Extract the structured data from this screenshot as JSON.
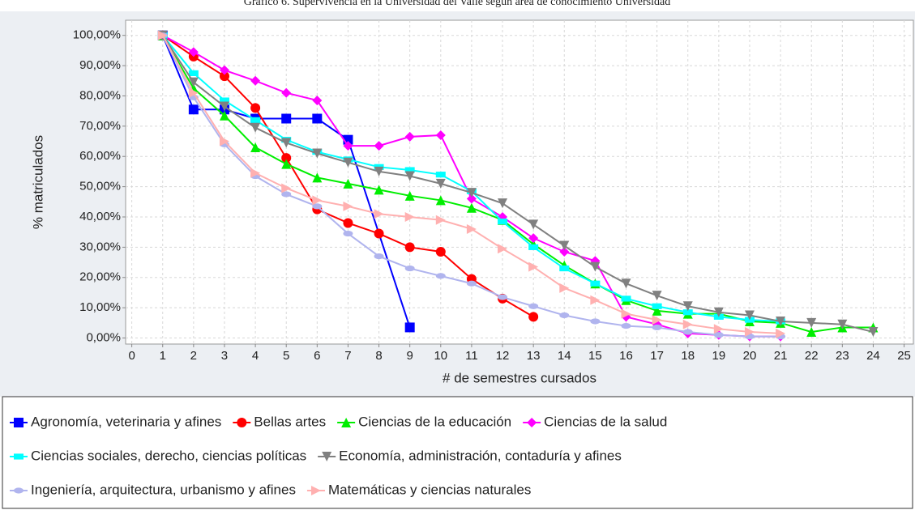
{
  "chart_data": {
    "type": "line",
    "title": "Gráfico 6. Supervivencia en la Universidad del Valle según área de conocimiento Universidad",
    "x_label": "# de semestres cursados",
    "y_label": "% matriculados",
    "xlim": [
      -0.2,
      25.3
    ],
    "xticks": [
      0,
      1,
      2,
      3,
      4,
      5,
      6,
      7,
      8,
      9,
      10,
      11,
      12,
      13,
      14,
      15,
      16,
      17,
      18,
      19,
      20,
      21,
      22,
      23,
      24,
      25
    ],
    "ylim": [
      -2,
      105
    ],
    "yticks": [
      {
        "value": 0,
        "label": "0,00%"
      },
      {
        "value": 10,
        "label": "10,00%"
      },
      {
        "value": 20,
        "label": "20,00%"
      },
      {
        "value": 30,
        "label": "30,00%"
      },
      {
        "value": 40,
        "label": "40,00%"
      },
      {
        "value": 50,
        "label": "50,00%"
      },
      {
        "value": 60,
        "label": "60,00%"
      },
      {
        "value": 70,
        "label": "70,00%"
      },
      {
        "value": 80,
        "label": "80,00%"
      },
      {
        "value": 90,
        "label": "90,00%"
      },
      {
        "value": 100,
        "label": "100,00%"
      }
    ],
    "grid": true,
    "series": [
      {
        "name": "Agronomía, veterinaria y afines",
        "color": "#0000ff",
        "marker": "square",
        "x": [
          1,
          2,
          3,
          4,
          5,
          6,
          7,
          9
        ],
        "values": [
          100,
          75.5,
          75.5,
          72.5,
          72.5,
          72.5,
          65.5,
          3.5
        ]
      },
      {
        "name": "Bellas artes",
        "color": "#ff0000",
        "marker": "circle",
        "x": [
          1,
          2,
          3,
          4,
          5,
          6,
          7,
          8,
          9,
          10,
          11,
          12,
          13
        ],
        "values": [
          100,
          93,
          86.5,
          76,
          59.5,
          42.5,
          38,
          34.5,
          30,
          28.5,
          19.5,
          13,
          7
        ]
      },
      {
        "name": "Ciencias de la educación",
        "color": "#00ee00",
        "marker": "triangle-up",
        "x": [
          1,
          2,
          3,
          4,
          5,
          6,
          7,
          8,
          9,
          10,
          11,
          12,
          13,
          14,
          15,
          16,
          17,
          18,
          19,
          20,
          21,
          22,
          23,
          24
        ],
        "values": [
          100,
          82.5,
          73.5,
          63,
          57.5,
          53,
          51,
          49,
          47,
          45.5,
          43,
          39,
          31,
          24,
          18,
          12.5,
          9,
          8,
          8,
          5.5,
          5,
          2,
          3.5,
          3.5
        ]
      },
      {
        "name": "Ciencias de la salud",
        "color": "#ff00ff",
        "marker": "diamond",
        "x": [
          1,
          2,
          3,
          4,
          5,
          6,
          7,
          8,
          9,
          10,
          11,
          12,
          13,
          14,
          15,
          16,
          17,
          18,
          19,
          20,
          21
        ],
        "values": [
          100,
          94.5,
          88.5,
          85,
          81,
          78.5,
          63.5,
          63.5,
          66.5,
          67,
          46,
          40,
          33,
          28.5,
          25.5,
          7,
          4.5,
          1.5,
          1,
          0.5,
          0.5
        ]
      },
      {
        "name": "Ciencias sociales, derecho, ciencias políticas",
        "color": "#00ffff",
        "marker": "flat",
        "x": [
          1,
          2,
          3,
          4,
          5,
          6,
          7,
          8,
          9,
          10,
          11,
          12,
          13,
          14,
          15,
          16,
          17,
          18,
          19,
          20,
          21
        ],
        "values": [
          100,
          87.5,
          78.5,
          72,
          65.5,
          61.5,
          59,
          56.5,
          55.5,
          54,
          48.5,
          38.5,
          30,
          23,
          18,
          13,
          10.5,
          8.5,
          7,
          6,
          5.5
        ]
      },
      {
        "name": "Economía, administración, contaduría y afines",
        "color": "#808080",
        "marker": "triangle-down",
        "x": [
          1,
          2,
          3,
          4,
          5,
          6,
          7,
          8,
          9,
          10,
          11,
          12,
          13,
          14,
          15,
          16,
          17,
          18,
          19,
          20,
          21,
          22,
          23,
          24
        ],
        "values": [
          100,
          84.5,
          76.5,
          69.5,
          64.5,
          61,
          58,
          55,
          53.5,
          51,
          48,
          44.5,
          37.5,
          30.5,
          23.5,
          18,
          14,
          10.5,
          8.5,
          7.5,
          5.5,
          5,
          4.5,
          2
        ]
      },
      {
        "name": "Ingeniería, arquitectura, urbanismo y afines",
        "color": "#b0b4ee",
        "marker": "ellipse",
        "x": [
          1,
          2,
          3,
          4,
          5,
          6,
          7,
          8,
          9,
          10,
          11,
          12,
          13,
          14,
          15,
          16,
          17,
          18,
          19,
          20,
          21
        ],
        "values": [
          100,
          79.5,
          64,
          53.5,
          47.5,
          43.5,
          34.5,
          27,
          23,
          20.5,
          18,
          13.5,
          10.5,
          7.5,
          5.5,
          4,
          3.5,
          2,
          1,
          0.5,
          0.5
        ]
      },
      {
        "name": "Matemáticas y ciencias naturales",
        "color": "#ffb0b0",
        "marker": "triangle-right",
        "x": [
          1,
          2,
          3,
          4,
          5,
          6,
          7,
          8,
          9,
          10,
          11,
          12,
          13,
          14,
          15,
          16,
          17,
          18,
          19,
          20,
          21
        ],
        "values": [
          100,
          81,
          65,
          54.5,
          49.5,
          45.5,
          43.5,
          41,
          40,
          39,
          36,
          29.5,
          23.5,
          16.5,
          12.5,
          8,
          6,
          4.5,
          3,
          2,
          1.5
        ]
      }
    ]
  }
}
